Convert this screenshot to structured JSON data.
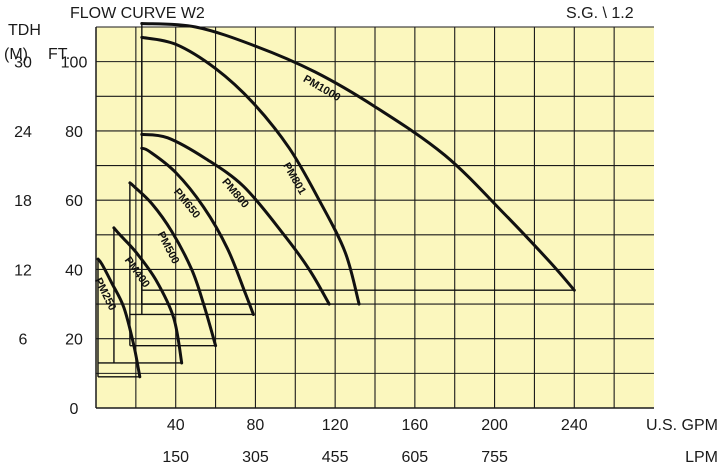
{
  "chart_data": {
    "type": "line",
    "title": "FLOW CURVE W2",
    "annotation": "S.G. \\ 1.2",
    "ylabel": "TDH",
    "ylabel_left_units": "(M)",
    "ylabel_right_units": "FT.",
    "xlabel_primary_units": "U.S. GPM",
    "xlabel_secondary_units": "LPM",
    "xlim": [
      0,
      280
    ],
    "ylim": [
      0,
      110
    ],
    "grid": true,
    "background_color": "#fbf7be",
    "grid_color": "#1a1a1a",
    "curve_color": "#111111",
    "y_ticks_ft": [
      "0",
      "20",
      "40",
      "60",
      "80",
      "100"
    ],
    "y_ticks_m": [
      "",
      "6",
      "12",
      "18",
      "24",
      "30"
    ],
    "x_ticks_gpm": [
      "40",
      "80",
      "120",
      "160",
      "200",
      "240"
    ],
    "x_ticks_lpm": [
      "150",
      "305",
      "455",
      "605",
      "755"
    ],
    "series": [
      {
        "name": "PM250",
        "points": [
          [
            1,
            43
          ],
          [
            3,
            41.5
          ],
          [
            8,
            36
          ],
          [
            14,
            29
          ],
          [
            19,
            18
          ],
          [
            22,
            9
          ]
        ],
        "floor_ft": 9,
        "floor_from_gpm": 1
      },
      {
        "name": "PM400",
        "points": [
          [
            9,
            52
          ],
          [
            12,
            50
          ],
          [
            20,
            45
          ],
          [
            30,
            37
          ],
          [
            39,
            26
          ],
          [
            43,
            13
          ]
        ],
        "floor_ft": 13,
        "floor_from_gpm": 1
      },
      {
        "name": "PM500",
        "points": [
          [
            17,
            65
          ],
          [
            19,
            64
          ],
          [
            28,
            59
          ],
          [
            38,
            51
          ],
          [
            48,
            40
          ],
          [
            54,
            30
          ],
          [
            60,
            18
          ]
        ],
        "floor_ft": 18,
        "floor_from_gpm": 17
      },
      {
        "name": "PM650",
        "points": [
          [
            23,
            75
          ],
          [
            27,
            74
          ],
          [
            40,
            68
          ],
          [
            54,
            58
          ],
          [
            66,
            46
          ],
          [
            75,
            33
          ],
          [
            79,
            27
          ]
        ],
        "floor_ft": 27,
        "floor_from_gpm": 17
      },
      {
        "name": "PM800",
        "points": [
          [
            23,
            79
          ],
          [
            36,
            78
          ],
          [
            55,
            72
          ],
          [
            74,
            64
          ],
          [
            93,
            51
          ],
          [
            107,
            40
          ],
          [
            117,
            30
          ]
        ],
        "floor_ft": 30,
        "floor_from_gpm": 23
      },
      {
        "name": "PM801",
        "points": [
          [
            23,
            107
          ],
          [
            40,
            105
          ],
          [
            60,
            98
          ],
          [
            79,
            88
          ],
          [
            97,
            75
          ],
          [
            112,
            60
          ],
          [
            125,
            45
          ],
          [
            132,
            30
          ]
        ],
        "floor_ft": 30,
        "floor_from_gpm": 23
      },
      {
        "name": "PM1000",
        "points": [
          [
            23,
            111
          ],
          [
            50,
            110
          ],
          [
            80,
            104.5
          ],
          [
            110,
            97
          ],
          [
            140,
            87
          ],
          [
            175,
            73
          ],
          [
            205,
            56
          ],
          [
            228,
            42
          ],
          [
            240,
            34
          ]
        ],
        "floor_ft": 34,
        "floor_from_gpm": 23
      }
    ]
  }
}
